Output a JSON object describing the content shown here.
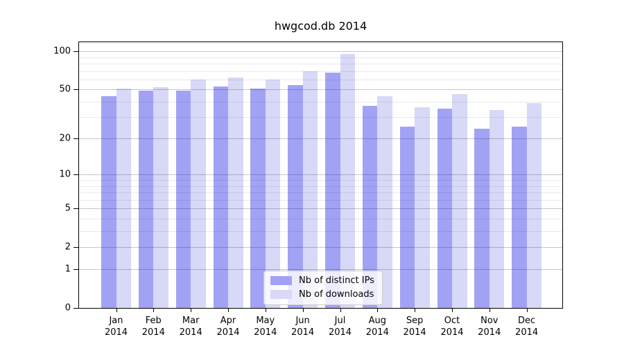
{
  "window": {
    "background": "#ffffff"
  },
  "chart_data": {
    "type": "bar",
    "title": "hwgcod.db 2014",
    "categories": [
      "Jan",
      "Feb",
      "Mar",
      "Apr",
      "May",
      "Jun",
      "Jul",
      "Aug",
      "Sep",
      "Oct",
      "Nov",
      "Dec"
    ],
    "year_label": "2014",
    "series": [
      {
        "name": "Nb of distinct IPs",
        "values": [
          44,
          49,
          49,
          53,
          51,
          54,
          68,
          37,
          25,
          35,
          24,
          25
        ]
      },
      {
        "name": "Nb of downloads",
        "values": [
          51,
          52,
          60,
          62,
          60,
          70,
          95,
          44,
          36,
          46,
          34,
          39
        ]
      }
    ],
    "xlabel": "",
    "ylabel": "",
    "yscale": "log10(1+x)",
    "ylim": [
      0,
      118
    ],
    "ytick_labels": [
      "0",
      "1",
      "2",
      "5",
      "10",
      "20",
      "50",
      "100"
    ],
    "yticks_major": [
      0,
      1,
      2,
      5,
      10,
      20,
      50,
      100
    ],
    "yticks_minor": [
      3,
      4,
      6,
      7,
      8,
      9,
      30,
      40,
      60,
      70,
      80,
      90
    ],
    "grid": true,
    "legend_position": "lower-center"
  },
  "colors": {
    "series1-fill": "rgba(0,0,228,0.365)",
    "series1-solid": "#a2a2f5",
    "series2-fill": "rgba(0,0,203,0.153)",
    "series2-solid": "#d8d8f7",
    "grid-major": "#c6c6c6",
    "grid-minor": "#e9e9e9",
    "spine": "#000000",
    "text": "#000000",
    "legend-border": "#cccccc"
  }
}
